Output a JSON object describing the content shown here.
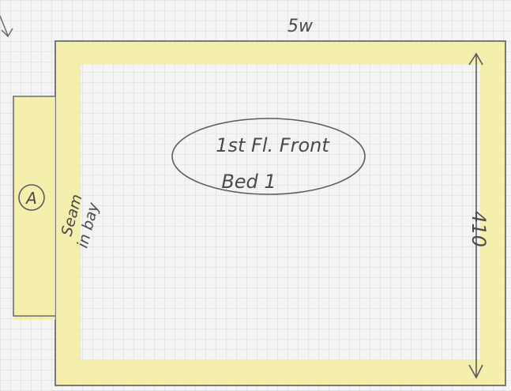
{
  "top_label": "5w",
  "room_label": {
    "line1": "1st Fl. Front",
    "line2": "Bed 1"
  },
  "bay_label": "A",
  "note": {
    "line1": "Seam",
    "line2": "in bay"
  },
  "dimension": "410"
}
